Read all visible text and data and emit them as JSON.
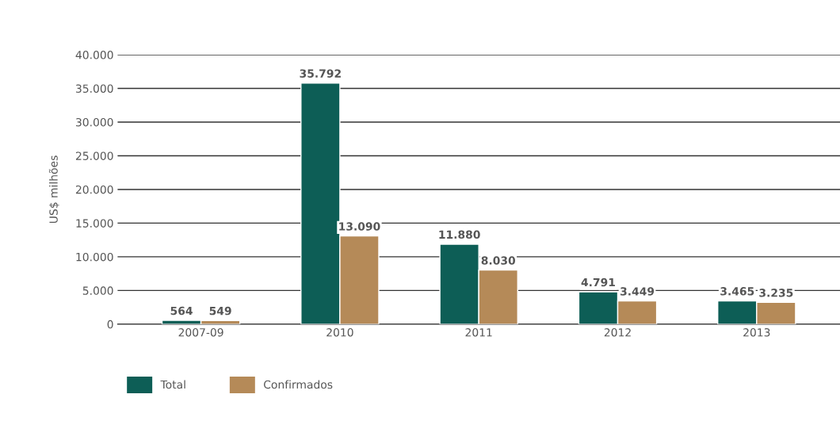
{
  "chart_data": {
    "type": "bar",
    "ylabel": "US$ milhões",
    "categories": [
      "2007-09",
      "2010",
      "2011",
      "2012",
      "2013"
    ],
    "series": [
      {
        "name": "Total",
        "color": "#0d5e56",
        "values": [
          564,
          35792,
          11880,
          4791,
          3465
        ],
        "value_labels": [
          "564",
          "35.792",
          "11.880",
          "4.791",
          "3.465"
        ]
      },
      {
        "name": "Confirmados",
        "color": "#b58a58",
        "values": [
          549,
          13090,
          8030,
          3449,
          3235
        ],
        "value_labels": [
          "549",
          "13.090",
          "8.030",
          "3.449",
          "3.235"
        ]
      }
    ],
    "ylim": [
      0,
      40000
    ],
    "yticks": [
      {
        "value": 0,
        "label": "0"
      },
      {
        "value": 5000,
        "label": "5.000"
      },
      {
        "value": 10000,
        "label": "10.000"
      },
      {
        "value": 15000,
        "label": "15.000"
      },
      {
        "value": 20000,
        "label": "20.000"
      },
      {
        "value": 25000,
        "label": "25.000"
      },
      {
        "value": 30000,
        "label": "30.000"
      },
      {
        "value": 35000,
        "label": "35.000"
      },
      {
        "value": 40000,
        "label": "40.000"
      }
    ],
    "grid": "y",
    "legend": "bottom left"
  }
}
